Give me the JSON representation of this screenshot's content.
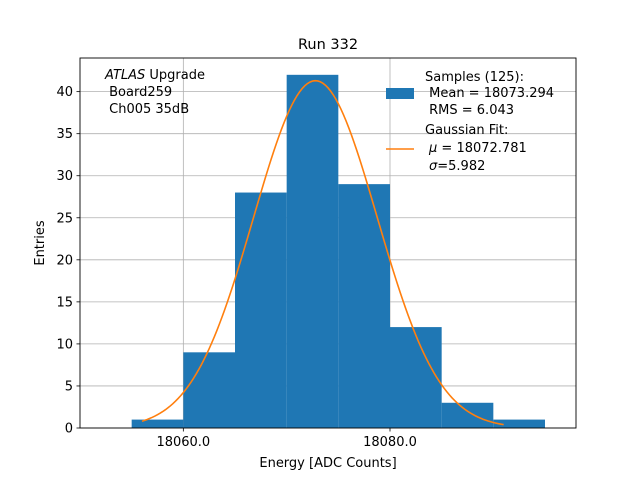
{
  "chart_data": {
    "type": "bar",
    "title": "Run 332",
    "xlabel": "Energy [ADC Counts]",
    "ylabel": "Entries",
    "xlim": [
      18050,
      18098
    ],
    "ylim": [
      0,
      44
    ],
    "grid": true,
    "x_ticks": [
      {
        "value": 18060,
        "label": "18060.0"
      },
      {
        "value": 18080,
        "label": "18080.0"
      }
    ],
    "y_ticks": [
      {
        "value": 0,
        "label": "0"
      },
      {
        "value": 5,
        "label": "5"
      },
      {
        "value": 10,
        "label": "10"
      },
      {
        "value": 15,
        "label": "15"
      },
      {
        "value": 20,
        "label": "20"
      },
      {
        "value": 25,
        "label": "25"
      },
      {
        "value": 30,
        "label": "30"
      },
      {
        "value": 35,
        "label": "35"
      },
      {
        "value": 40,
        "label": "40"
      }
    ],
    "histogram": {
      "bin_edges": [
        18055,
        18060,
        18065,
        18070,
        18075,
        18080,
        18085,
        18090,
        18095
      ],
      "counts": [
        1,
        9,
        28,
        42,
        29,
        12,
        3,
        1
      ],
      "color": "#1f77b4"
    },
    "fit": {
      "type": "gaussian",
      "amplitude": 41.3,
      "mu": 18072.781,
      "sigma": 5.982,
      "x_range": [
        18056,
        18091
      ],
      "color": "#ff7f0e"
    },
    "annotation": {
      "line1_italic": "ATLAS",
      "line1_rest": " Upgrade",
      "line2": " Board259",
      "line3": " Ch005 35dB"
    },
    "legend": {
      "position": "top-right",
      "samples": {
        "line1": "Samples (125):",
        "line2": " Mean = 18073.294",
        "line3": " RMS = 6.043"
      },
      "fit": {
        "line1": "Gaussian Fit:",
        "line2_sym": "μ",
        "line2_rest": " = 18072.781",
        "line3_sym": "σ",
        "line3_rest": "=5.982"
      }
    }
  }
}
